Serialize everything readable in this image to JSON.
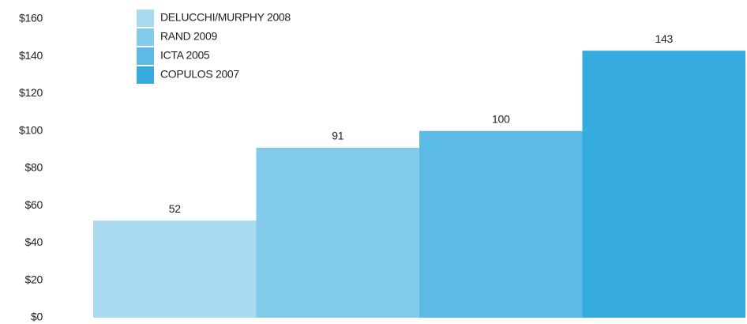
{
  "chart_data": {
    "type": "bar",
    "categories": [
      null
    ],
    "series": [
      {
        "name": "DELUCCHI/MURPHY 2008",
        "color": "#a8daf0",
        "values": [
          52
        ]
      },
      {
        "name": "RAND 2009",
        "color": "#82cbea",
        "values": [
          91
        ]
      },
      {
        "name": "ICTA 2005",
        "color": "#5cbbe4",
        "values": [
          100
        ]
      },
      {
        "name": "COPULOS 2007",
        "color": "#35abdf",
        "values": [
          143
        ]
      }
    ],
    "ylim": [
      0,
      160
    ],
    "yticks": [
      {
        "value": 0,
        "label": "$0"
      },
      {
        "value": 20,
        "label": "$20"
      },
      {
        "value": 40,
        "label": "$40"
      },
      {
        "value": 60,
        "label": "$60"
      },
      {
        "value": 80,
        "label": "$80"
      },
      {
        "value": 100,
        "label": "$100"
      },
      {
        "value": 120,
        "label": "$120"
      },
      {
        "value": 140,
        "label": "$140"
      },
      {
        "value": 160,
        "label": "$160"
      }
    ],
    "legend": "top-left",
    "grid": false
  }
}
